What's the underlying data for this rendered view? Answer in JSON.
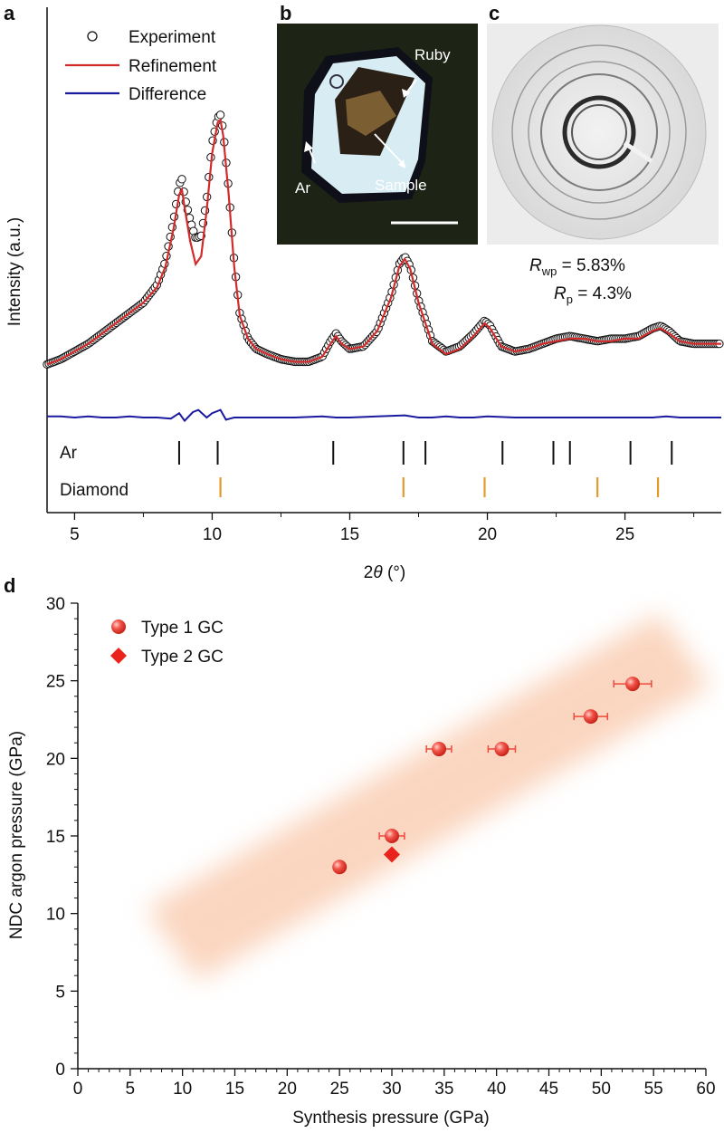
{
  "panel_letters": {
    "a": "a",
    "b": "b",
    "c": "c",
    "d": "d"
  },
  "colors": {
    "experiment": "#111111",
    "refinement": "#d22b2b",
    "difference": "#1a1aa0",
    "ar_ticks": "#111111",
    "diamond_ticks": "#e39a2d",
    "points": "#ee4a3f",
    "band": "#f7b48c"
  },
  "panel_b": {
    "ruby_label": "Ruby",
    "ar_label": "Ar",
    "sample_label": "Sample"
  },
  "panel_c": {
    "rwp_label": "R",
    "rwp_sub": "wp",
    "rwp_value": " = 5.83%",
    "rp_label": "R",
    "rp_sub": "p",
    "rp_value": " = 4.3%"
  },
  "chart_data": [
    {
      "type": "line",
      "xlabel_prefix": "2",
      "xlabel_theta": "θ",
      "xlabel_suffix": " (°)",
      "ylabel": "Intensity (a.u.)",
      "xlim": [
        4,
        28.5
      ],
      "xticks": [
        5,
        10,
        15,
        20,
        25
      ],
      "series": [
        {
          "name": "Experiment",
          "style": "open-circles",
          "x": [
            4,
            4.5,
            5,
            5.5,
            6,
            6.5,
            7,
            7.5,
            8,
            8.3,
            8.6,
            8.8,
            8.9,
            9.0,
            9.2,
            9.4,
            9.6,
            9.8,
            10.0,
            10.2,
            10.3,
            10.4,
            10.6,
            10.8,
            11.0,
            11.3,
            11.6,
            12,
            12.5,
            13,
            13.5,
            14,
            14.3,
            14.5,
            14.7,
            15,
            15.5,
            16,
            16.5,
            16.8,
            17,
            17.2,
            17.5,
            18,
            18.5,
            19,
            19.5,
            19.9,
            20.1,
            20.5,
            21,
            21.5,
            22,
            22.5,
            23,
            23.5,
            24,
            24.5,
            25,
            25.5,
            26,
            26.3,
            26.6,
            27,
            27.5,
            28,
            28.5
          ],
          "y": [
            0.02,
            0.04,
            0.07,
            0.1,
            0.14,
            0.18,
            0.22,
            0.26,
            0.33,
            0.42,
            0.58,
            0.72,
            0.74,
            0.67,
            0.58,
            0.51,
            0.52,
            0.66,
            0.88,
            0.98,
            0.99,
            0.93,
            0.7,
            0.42,
            0.22,
            0.12,
            0.08,
            0.06,
            0.04,
            0.03,
            0.03,
            0.05,
            0.11,
            0.14,
            0.11,
            0.08,
            0.09,
            0.15,
            0.29,
            0.41,
            0.44,
            0.4,
            0.27,
            0.11,
            0.07,
            0.09,
            0.14,
            0.19,
            0.17,
            0.09,
            0.07,
            0.08,
            0.1,
            0.12,
            0.13,
            0.12,
            0.11,
            0.12,
            0.12,
            0.13,
            0.16,
            0.17,
            0.15,
            0.11,
            0.1,
            0.1,
            0.1
          ]
        },
        {
          "name": "Refinement",
          "style": "line",
          "x": [
            4,
            4.5,
            5,
            5.5,
            6,
            6.5,
            7,
            7.5,
            8,
            8.3,
            8.6,
            8.8,
            8.9,
            9.0,
            9.2,
            9.4,
            9.6,
            9.8,
            10.0,
            10.2,
            10.3,
            10.4,
            10.6,
            10.8,
            11.0,
            11.3,
            11.6,
            12,
            12.5,
            13,
            13.5,
            14,
            14.3,
            14.5,
            14.7,
            15,
            15.5,
            16,
            16.5,
            16.8,
            17,
            17.2,
            17.5,
            18,
            18.5,
            19,
            19.5,
            19.9,
            20.1,
            20.5,
            21,
            21.5,
            22,
            22.5,
            23,
            23.5,
            24,
            24.5,
            25,
            25.5,
            26,
            26.3,
            26.6,
            27,
            27.5,
            28,
            28.5
          ],
          "y": [
            0.02,
            0.04,
            0.07,
            0.1,
            0.14,
            0.18,
            0.22,
            0.26,
            0.32,
            0.4,
            0.55,
            0.68,
            0.7,
            0.63,
            0.5,
            0.41,
            0.44,
            0.62,
            0.84,
            0.96,
            0.97,
            0.91,
            0.68,
            0.4,
            0.21,
            0.12,
            0.08,
            0.06,
            0.04,
            0.03,
            0.03,
            0.05,
            0.1,
            0.13,
            0.1,
            0.08,
            0.09,
            0.15,
            0.28,
            0.4,
            0.43,
            0.39,
            0.26,
            0.1,
            0.06,
            0.08,
            0.13,
            0.18,
            0.16,
            0.09,
            0.07,
            0.08,
            0.1,
            0.11,
            0.12,
            0.12,
            0.11,
            0.11,
            0.12,
            0.12,
            0.15,
            0.16,
            0.14,
            0.11,
            0.1,
            0.1,
            0.1
          ]
        },
        {
          "name": "Difference",
          "style": "line",
          "x": [
            4,
            4.5,
            5,
            5.5,
            6,
            6.5,
            7,
            7.5,
            8,
            8.5,
            8.8,
            9.0,
            9.3,
            9.5,
            9.8,
            10.0,
            10.3,
            10.5,
            10.8,
            11,
            12,
            13,
            14,
            14.5,
            15,
            16,
            17,
            17.5,
            18,
            18.5,
            19,
            19.5,
            20,
            21,
            22,
            23,
            24,
            25,
            26,
            26.5,
            27,
            28,
            28.5
          ],
          "y": [
            0.01,
            0.01,
            0.0,
            0.01,
            0.0,
            0.0,
            0.01,
            0.0,
            0.0,
            -0.01,
            0.04,
            -0.03,
            0.05,
            0.07,
            0.0,
            0.04,
            0.07,
            -0.02,
            0.0,
            0.0,
            0.0,
            0.0,
            0.01,
            0.0,
            0.0,
            0.01,
            0.02,
            0.0,
            0.0,
            0.01,
            0.0,
            0.0,
            0.01,
            0.0,
            0.0,
            0.0,
            0.0,
            0.0,
            0.0,
            0.01,
            0.0,
            0.0,
            0.0
          ]
        }
      ],
      "reflections": [
        {
          "label": "Ar",
          "positions": [
            8.8,
            10.2,
            14.4,
            16.95,
            17.75,
            20.55,
            22.4,
            23.0,
            25.2,
            26.7
          ]
        },
        {
          "label": "Diamond",
          "positions": [
            10.3,
            16.95,
            19.9,
            24.0,
            26.2
          ]
        }
      ]
    },
    {
      "type": "scatter",
      "xlabel": "Synthesis pressure (GPa)",
      "ylabel": "NDC argon pressure (GPa)",
      "xlim": [
        0,
        60
      ],
      "ylim": [
        0,
        30
      ],
      "xticks": [
        0,
        5,
        10,
        15,
        20,
        25,
        30,
        35,
        40,
        45,
        50,
        55,
        60
      ],
      "yticks": [
        0,
        5,
        10,
        15,
        20,
        25,
        30
      ],
      "series": [
        {
          "name": "Type 1 GC",
          "marker": "sphere",
          "points": [
            {
              "x": 25,
              "y": 13.0,
              "xerr": 0.5,
              "yerr": 0.2
            },
            {
              "x": 30,
              "y": 15.0,
              "xerr": 1.2,
              "yerr": 0.2
            },
            {
              "x": 34.5,
              "y": 20.6,
              "xerr": 1.2,
              "yerr": 0.2
            },
            {
              "x": 40.5,
              "y": 20.6,
              "xerr": 1.3,
              "yerr": 0.2
            },
            {
              "x": 49,
              "y": 22.7,
              "xerr": 1.6,
              "yerr": 0.2
            },
            {
              "x": 53,
              "y": 24.8,
              "xerr": 1.8,
              "yerr": 0.2
            }
          ]
        },
        {
          "name": "Type 2 GC",
          "marker": "diamond",
          "points": [
            {
              "x": 30,
              "y": 13.8,
              "xerr": 0.5,
              "yerr": 0.2
            }
          ]
        }
      ]
    }
  ]
}
